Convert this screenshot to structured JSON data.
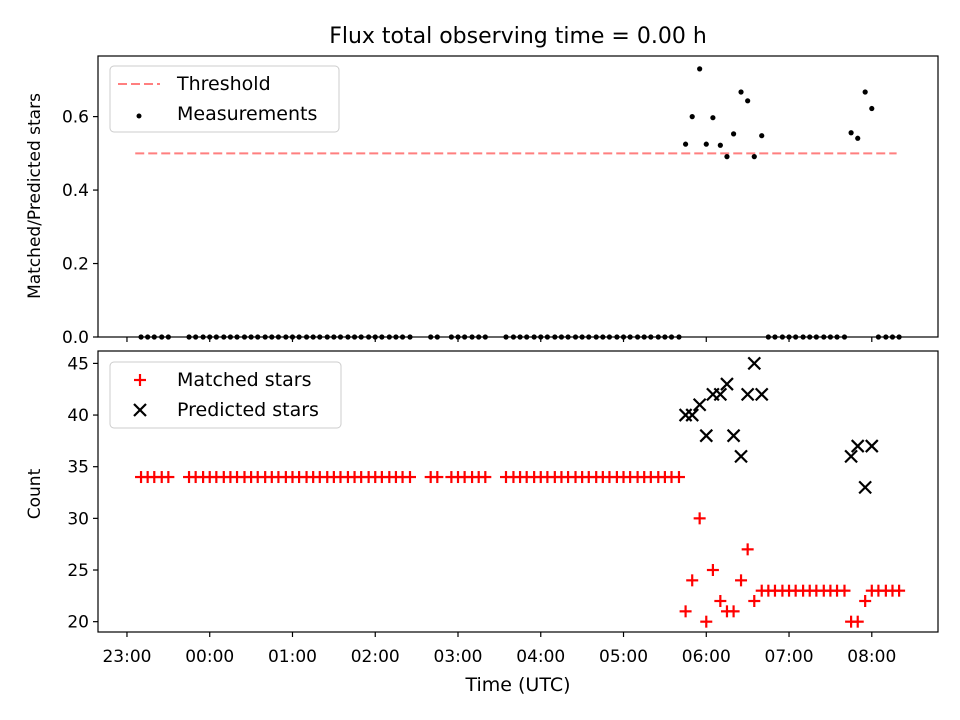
{
  "chart_data": {
    "title": "Flux total observing time = 0.00 h",
    "xlabel": "Time (UTC)",
    "x_tick_labels": [
      "23:00",
      "00:00",
      "01:00",
      "02:00",
      "03:00",
      "04:00",
      "05:00",
      "06:00",
      "07:00",
      "08:00"
    ],
    "x_ticks_hours": [
      -1,
      0,
      1,
      2,
      3,
      4,
      5,
      6,
      7,
      8
    ],
    "xlim_hours": [
      -1.35,
      8.8
    ],
    "panels": [
      {
        "type": "scatter",
        "ylabel": "Matched/Predicted stars",
        "ylim": [
          0,
          0.765
        ],
        "y_ticks": [
          0.0,
          0.2,
          0.4,
          0.6
        ],
        "y_tick_labels": [
          "0.0",
          "0.2",
          "0.4",
          "0.6"
        ],
        "legend_position": "upper-left",
        "threshold": {
          "name": "Threshold",
          "value": 0.5,
          "x_range_hours": [
            -0.9,
            8.3
          ],
          "color": "#ff7f7f",
          "style": "dashed"
        },
        "series": [
          {
            "name": "Measurements",
            "marker": "dot",
            "color": "#000000",
            "x_hours": [
              -0.83,
              -0.75,
              -0.67,
              -0.58,
              -0.5,
              -0.25,
              -0.17,
              -0.08,
              0.0,
              0.08,
              0.17,
              0.25,
              0.33,
              0.42,
              0.5,
              0.58,
              0.67,
              0.75,
              0.83,
              0.92,
              1.0,
              1.08,
              1.17,
              1.25,
              1.33,
              1.42,
              1.5,
              1.58,
              1.67,
              1.75,
              1.83,
              1.92,
              2.0,
              2.08,
              2.17,
              2.25,
              2.33,
              2.42,
              2.67,
              2.75,
              2.92,
              3.0,
              3.08,
              3.17,
              3.25,
              3.33,
              3.58,
              3.67,
              3.75,
              3.83,
              3.92,
              4.0,
              4.08,
              4.17,
              4.25,
              4.33,
              4.42,
              4.5,
              4.58,
              4.67,
              4.75,
              4.83,
              4.92,
              5.0,
              5.08,
              5.17,
              5.25,
              5.33,
              5.42,
              5.5,
              5.58,
              5.67,
              5.75,
              5.83,
              5.92,
              6.0,
              6.08,
              6.17,
              6.25,
              6.33,
              6.42,
              6.5,
              6.58,
              6.67,
              6.75,
              6.83,
              6.92,
              7.0,
              7.08,
              7.17,
              7.25,
              7.33,
              7.42,
              7.5,
              7.58,
              7.67,
              7.75,
              7.83,
              7.92,
              8.0,
              8.08,
              8.17,
              8.25,
              8.33
            ],
            "y": [
              0,
              0,
              0,
              0,
              0,
              0,
              0,
              0,
              0,
              0,
              0,
              0,
              0,
              0,
              0,
              0,
              0,
              0,
              0,
              0,
              0,
              0,
              0,
              0,
              0,
              0,
              0,
              0,
              0,
              0,
              0,
              0,
              0,
              0,
              0,
              0,
              0,
              0,
              0,
              0,
              0,
              0,
              0,
              0,
              0,
              0,
              0,
              0,
              0,
              0,
              0,
              0,
              0,
              0,
              0,
              0,
              0,
              0,
              0,
              0,
              0,
              0,
              0,
              0,
              0,
              0,
              0,
              0,
              0,
              0,
              0,
              0,
              0.525,
              0.6,
              0.73,
              0.525,
              0.597,
              0.522,
              0.491,
              0.553,
              0.667,
              0.643,
              0.491,
              0.548,
              0,
              0,
              0,
              0,
              0,
              0,
              0,
              0,
              0,
              0,
              0,
              0,
              0.556,
              0.541,
              0.667,
              0.622,
              0,
              0,
              0,
              0
            ]
          }
        ]
      },
      {
        "type": "scatter",
        "ylabel": "Count",
        "ylim": [
          19,
          46.2
        ],
        "y_ticks": [
          20,
          25,
          30,
          35,
          40,
          45
        ],
        "y_tick_labels": [
          "20",
          "25",
          "30",
          "35",
          "40",
          "45"
        ],
        "legend_position": "upper-left",
        "series": [
          {
            "name": "Matched stars",
            "marker": "plus",
            "color": "#ff0000",
            "x_hours": [
              -0.83,
              -0.75,
              -0.67,
              -0.58,
              -0.5,
              -0.25,
              -0.17,
              -0.08,
              0.0,
              0.08,
              0.17,
              0.25,
              0.33,
              0.42,
              0.5,
              0.58,
              0.67,
              0.75,
              0.83,
              0.92,
              1.0,
              1.08,
              1.17,
              1.25,
              1.33,
              1.42,
              1.5,
              1.58,
              1.67,
              1.75,
              1.83,
              1.92,
              2.0,
              2.08,
              2.17,
              2.25,
              2.33,
              2.42,
              2.67,
              2.75,
              2.92,
              3.0,
              3.08,
              3.17,
              3.25,
              3.33,
              3.58,
              3.67,
              3.75,
              3.83,
              3.92,
              4.0,
              4.08,
              4.17,
              4.25,
              4.33,
              4.42,
              4.5,
              4.58,
              4.67,
              4.75,
              4.83,
              4.92,
              5.0,
              5.08,
              5.17,
              5.25,
              5.33,
              5.42,
              5.5,
              5.58,
              5.67,
              5.75,
              5.83,
              5.92,
              6.0,
              6.08,
              6.17,
              6.25,
              6.33,
              6.42,
              6.5,
              6.58,
              6.67,
              6.75,
              6.83,
              6.92,
              7.0,
              7.08,
              7.17,
              7.25,
              7.33,
              7.42,
              7.5,
              7.58,
              7.67,
              7.75,
              7.83,
              7.92,
              8.0,
              8.08,
              8.17,
              8.25,
              8.33
            ],
            "y": [
              34,
              34,
              34,
              34,
              34,
              34,
              34,
              34,
              34,
              34,
              34,
              34,
              34,
              34,
              34,
              34,
              34,
              34,
              34,
              34,
              34,
              34,
              34,
              34,
              34,
              34,
              34,
              34,
              34,
              34,
              34,
              34,
              34,
              34,
              34,
              34,
              34,
              34,
              34,
              34,
              34,
              34,
              34,
              34,
              34,
              34,
              34,
              34,
              34,
              34,
              34,
              34,
              34,
              34,
              34,
              34,
              34,
              34,
              34,
              34,
              34,
              34,
              34,
              34,
              34,
              34,
              34,
              34,
              34,
              34,
              34,
              34,
              21,
              24,
              30,
              20,
              25,
              22,
              21,
              21,
              24,
              27,
              22,
              23,
              23,
              23,
              23,
              23,
              23,
              23,
              23,
              23,
              23,
              23,
              23,
              23,
              20,
              20,
              22,
              23,
              23,
              23,
              23,
              23
            ]
          },
          {
            "name": "Predicted stars",
            "marker": "x",
            "color": "#000000",
            "x_hours": [
              5.75,
              5.83,
              5.92,
              6.0,
              6.08,
              6.17,
              6.25,
              6.33,
              6.42,
              6.5,
              6.58,
              6.67,
              7.75,
              7.83,
              7.92,
              8.0
            ],
            "y": [
              40,
              40,
              41,
              38,
              42,
              42,
              43,
              38,
              36,
              42,
              45,
              42,
              36,
              37,
              33,
              37
            ]
          }
        ]
      }
    ]
  }
}
